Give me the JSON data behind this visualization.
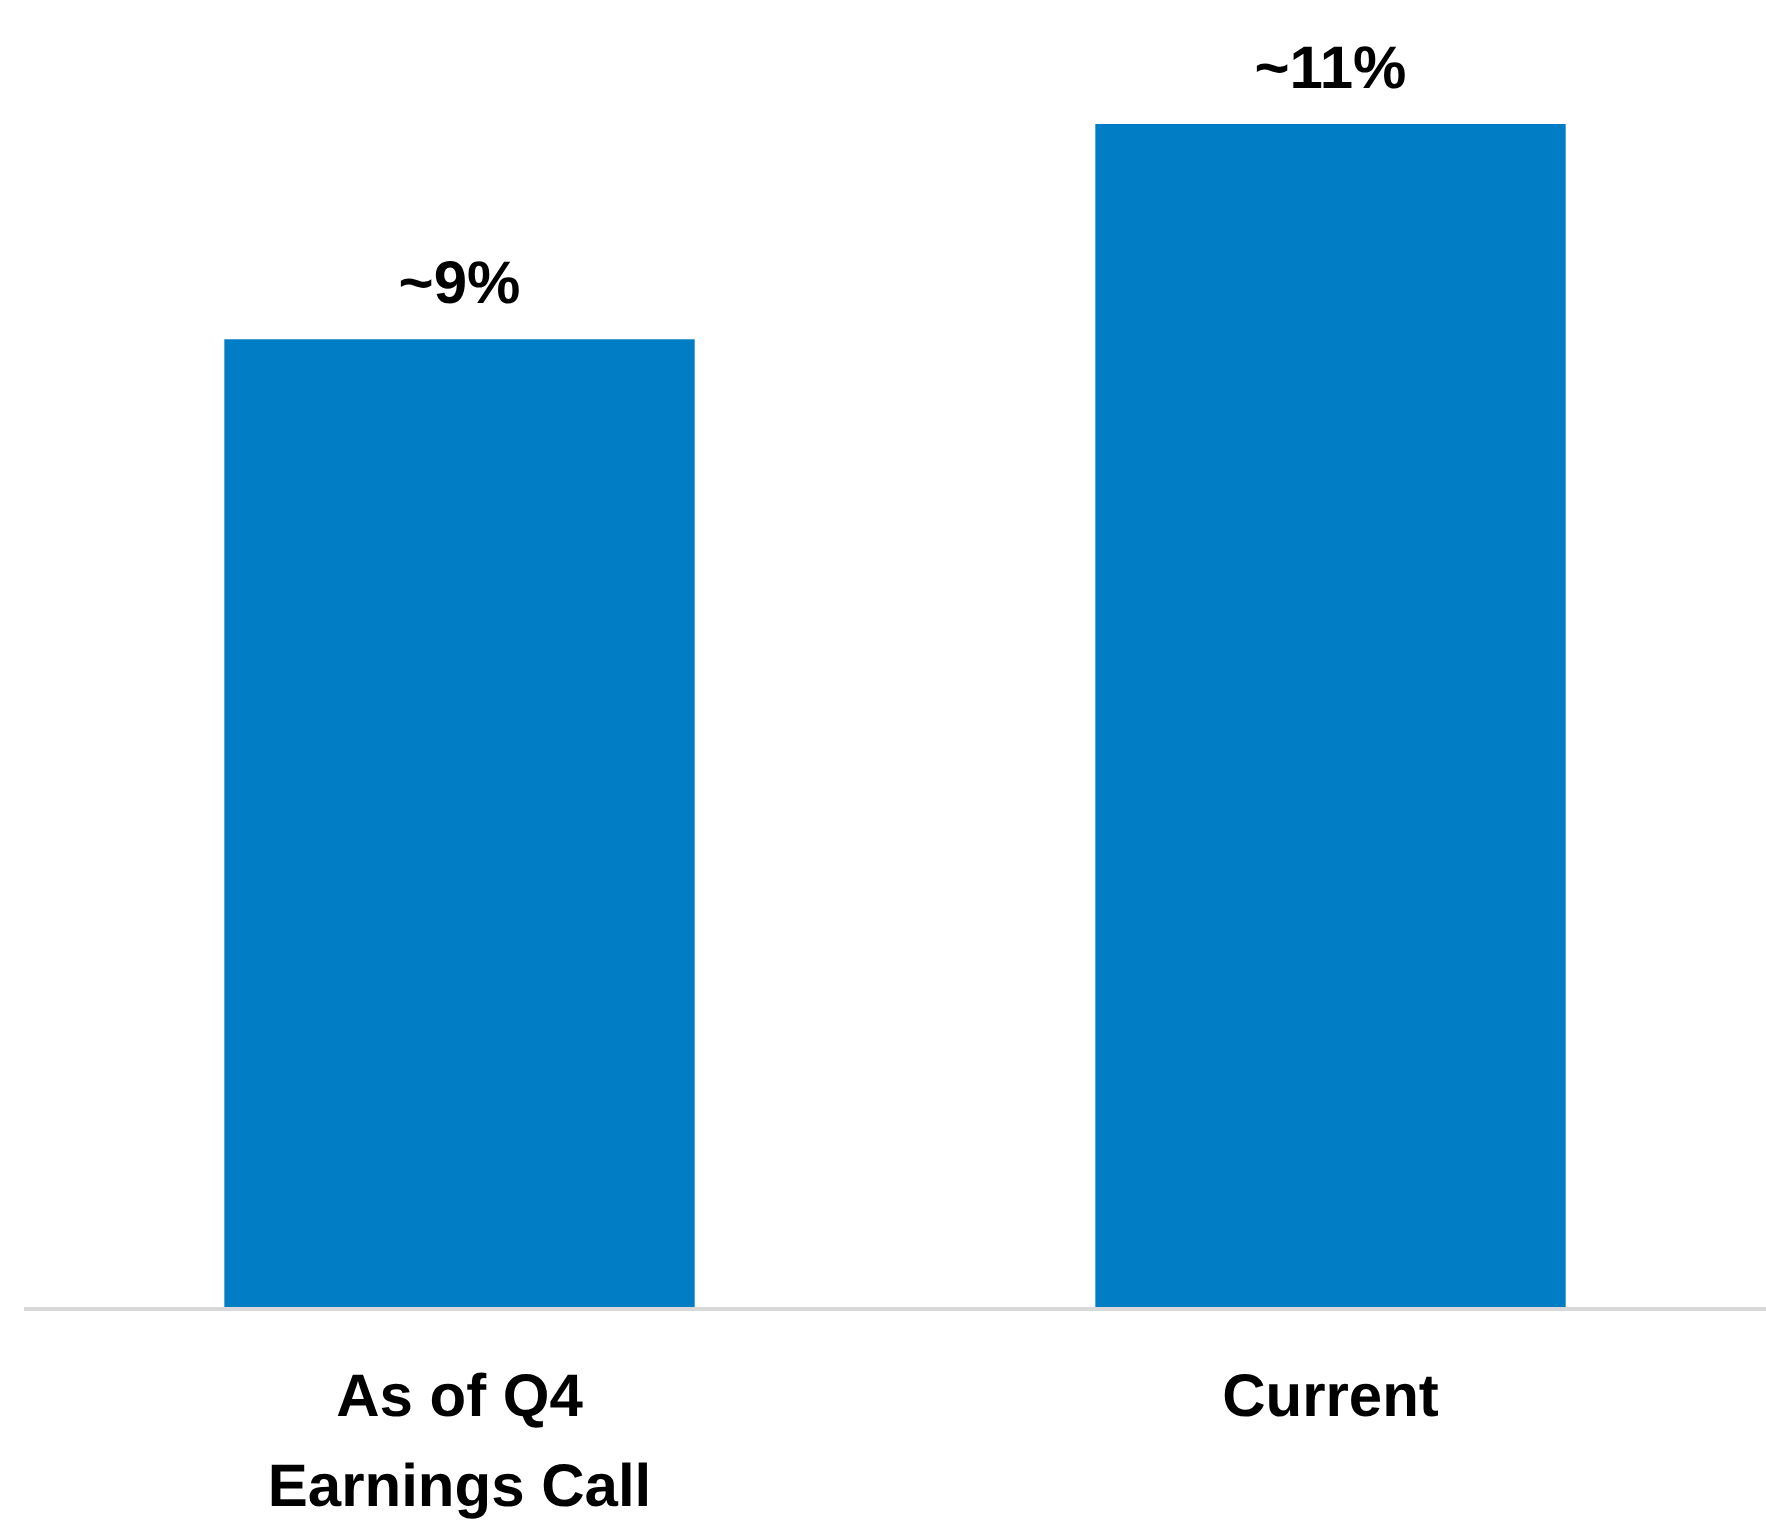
{
  "chart_data": {
    "type": "bar",
    "categories": [
      "As of Q4 Earnings Call",
      "Current"
    ],
    "series": [
      {
        "color": "#007dc5",
        "values": [
          9,
          11
        ],
        "value_labels": [
          "~9%",
          "~11%"
        ]
      }
    ]
  }
}
